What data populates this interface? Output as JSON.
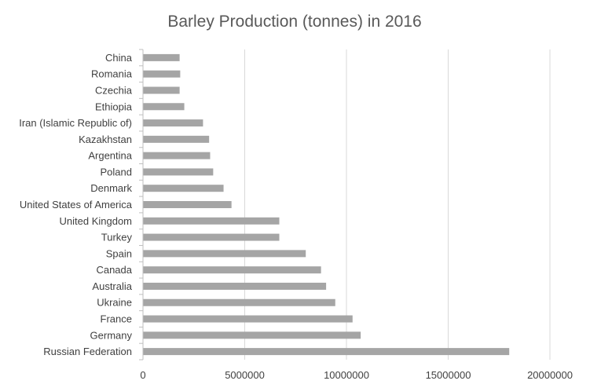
{
  "chart_data": {
    "type": "bar",
    "orientation": "horizontal",
    "title": "Barley Production (tonnes) in 2016",
    "xlabel": "",
    "ylabel": "",
    "categories": [
      "China",
      "Romania",
      "Czechia",
      "Ethiopia",
      "Iran (Islamic Republic of)",
      "Kazakhstan",
      "Argentina",
      "Poland",
      "Denmark",
      "United States of America",
      "United Kingdom",
      "Turkey",
      "Spain",
      "Canada",
      "Australia",
      "Ukraine",
      "France",
      "Germany",
      "Russian Federation"
    ],
    "values": [
      1800000,
      1830000,
      1800000,
      2030000,
      2950000,
      3250000,
      3300000,
      3450000,
      3960000,
      4350000,
      6700000,
      6700000,
      8000000,
      8750000,
      9000000,
      9450000,
      10300000,
      10700000,
      18000000
    ],
    "xlim": [
      0,
      20000000
    ],
    "x_ticks": [
      0,
      5000000,
      10000000,
      15000000,
      20000000
    ],
    "x_tick_labels": [
      "0",
      "5000000",
      "10000000",
      "15000000",
      "20000000"
    ],
    "grid": true,
    "legend": "none",
    "colors": {
      "bar": "#a5a5a5",
      "grid": "#d9d9d9",
      "axis": "#bfbfbf",
      "title": "#595959",
      "text": "#404040"
    }
  }
}
